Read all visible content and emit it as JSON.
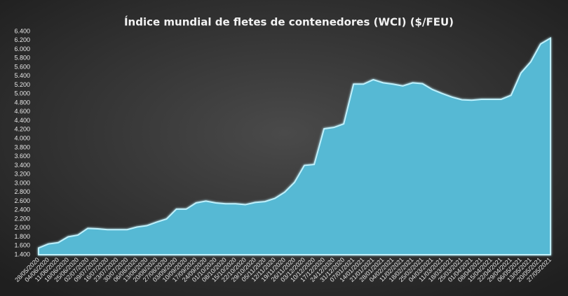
{
  "chart_data": {
    "type": "area",
    "title": "Índice mundial de fletes de contenedores (WCI) ($/FEU)",
    "categories": [
      "28/05/2020",
      "04/06/2020",
      "11/06/2020",
      "18/06/2020",
      "25/06/2020",
      "02/07/2020",
      "09/07/2020",
      "16/07/2020",
      "23/07/2020",
      "30/07/2020",
      "06/08/2020",
      "13/08/2020",
      "20/08/2020",
      "27/08/2020",
      "03/09/2020",
      "10/09/2020",
      "17/09/2020",
      "24/09/2020",
      "01/10/2020",
      "08/10/2020",
      "15/10/2020",
      "22/10/2020",
      "29/10/2020",
      "05/11/2020",
      "12/11/2020",
      "19/11/2020",
      "26/11/2020",
      "03/12/2020",
      "10/12/2020",
      "17/12/2020",
      "24/12/2020",
      "31/12/2020",
      "07/01/2021",
      "14/01/2021",
      "21/01/2021",
      "28/01/2021",
      "04/02/2021",
      "11/02/2021",
      "18/02/2021",
      "25/02/2021",
      "04/03/2021",
      "11/03/2021",
      "18/03/2021",
      "25/03/2021",
      "01/04/2021",
      "08/04/2021",
      "15/04/2021",
      "22/04/2021",
      "29/04/2021",
      "06/05/2021",
      "13/05/2021",
      "20/05/2021",
      "27/05/2021"
    ],
    "values": [
      1550,
      1640,
      1670,
      1800,
      1840,
      1990,
      1980,
      1960,
      1960,
      1960,
      2020,
      2050,
      2130,
      2200,
      2420,
      2420,
      2560,
      2600,
      2560,
      2540,
      2540,
      2520,
      2570,
      2590,
      2660,
      2800,
      3020,
      3400,
      3420,
      4220,
      4250,
      4330,
      5220,
      5220,
      5320,
      5250,
      5220,
      5180,
      5250,
      5230,
      5100,
      5010,
      4930,
      4870,
      4860,
      4880,
      4880,
      4880,
      4970,
      5470,
      5720,
      6120,
      6250
    ],
    "color": "#56b9d4",
    "ylim": [
      1400,
      6400
    ],
    "yticks": [
      {
        "value": 1400,
        "label": "1.400"
      },
      {
        "value": 1600,
        "label": "1.600"
      },
      {
        "value": 1800,
        "label": "1.800"
      },
      {
        "value": 2000,
        "label": "2.000"
      },
      {
        "value": 2200,
        "label": "2.200"
      },
      {
        "value": 2400,
        "label": "2.400"
      },
      {
        "value": 2600,
        "label": "2.600"
      },
      {
        "value": 2800,
        "label": "2.800"
      },
      {
        "value": 3000,
        "label": "3.000"
      },
      {
        "value": 3200,
        "label": "3.200"
      },
      {
        "value": 3400,
        "label": "3.400"
      },
      {
        "value": 3600,
        "label": "3.600"
      },
      {
        "value": 3800,
        "label": "3.800"
      },
      {
        "value": 4000,
        "label": "4.000"
      },
      {
        "value": 4200,
        "label": "4.200"
      },
      {
        "value": 4400,
        "label": "4.400"
      },
      {
        "value": 4600,
        "label": "4.600"
      },
      {
        "value": 4800,
        "label": "4.800"
      },
      {
        "value": 5000,
        "label": "5.000"
      },
      {
        "value": 5200,
        "label": "5.200"
      },
      {
        "value": 5400,
        "label": "5.400"
      },
      {
        "value": 5600,
        "label": "5.600"
      },
      {
        "value": 5800,
        "label": "5.800"
      },
      {
        "value": 6000,
        "label": "6.000"
      },
      {
        "value": 6200,
        "label": "6.200"
      },
      {
        "value": 6400,
        "label": "6.400"
      }
    ],
    "grid": false
  }
}
